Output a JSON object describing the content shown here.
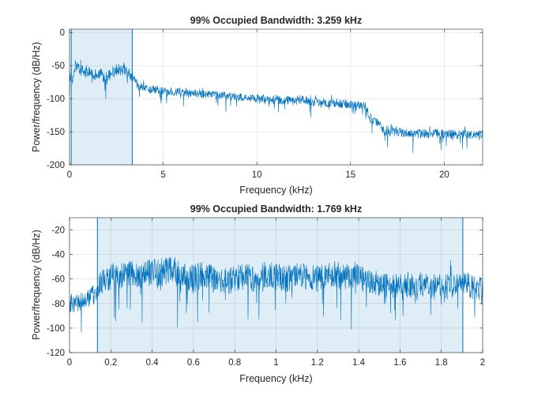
{
  "chart_data": [
    {
      "type": "line",
      "title": "99% Occupied Bandwidth: 3.259 kHz",
      "xlabel": "Frequency (kHz)",
      "ylabel": "Power/frequency (dB/Hz)",
      "xlim": [
        0,
        22.05
      ],
      "ylim": [
        -200,
        5
      ],
      "xticks": [
        0,
        5,
        10,
        15,
        20
      ],
      "yticks": [
        -200,
        -150,
        -100,
        -50,
        0
      ],
      "grid": true,
      "occupied_band": [
        0.09,
        3.349
      ],
      "series": [
        {
          "color": "#0072BD",
          "x": [
            0,
            0.1,
            0.2,
            0.3,
            0.5,
            0.8,
            1,
            1.3,
            1.6,
            2,
            2.3,
            2.6,
            3,
            3.3,
            3.5,
            3.8,
            4,
            5,
            6,
            7,
            8,
            9,
            10,
            11,
            12,
            12.5,
            13,
            14,
            15,
            15.8,
            16,
            16.3,
            16.6,
            16.8,
            17,
            17.5,
            18,
            19,
            20,
            21,
            22,
            22.05
          ],
          "y": [
            -70,
            -60,
            -75,
            -50,
            -55,
            -60,
            -58,
            -65,
            -62,
            -68,
            -60,
            -55,
            -58,
            -65,
            -75,
            -82,
            -85,
            -88,
            -90,
            -93,
            -95,
            -97,
            -100,
            -102,
            -103,
            -101,
            -104,
            -106,
            -108,
            -112,
            -125,
            -135,
            -140,
            -150,
            -148,
            -150,
            -152,
            -153,
            -153,
            -154,
            -154,
            -154
          ],
          "band": [
            18,
            18,
            18,
            20,
            18,
            18,
            18,
            18,
            18,
            18,
            18,
            18,
            18,
            18,
            16,
            14,
            12,
            12,
            12,
            12,
            12,
            12,
            14,
            14,
            14,
            14,
            14,
            14,
            14,
            14,
            14,
            14,
            14,
            18,
            18,
            15,
            15,
            15,
            15,
            15,
            15,
            15
          ]
        }
      ]
    },
    {
      "type": "line",
      "title": "99% Occupied Bandwidth: 1.769 kHz",
      "xlabel": "Frequency (kHz)",
      "ylabel": "Power/frequency (dB/Hz)",
      "xlim": [
        0,
        2
      ],
      "ylim": [
        -120,
        -10
      ],
      "xticks": [
        0,
        0.2,
        0.4,
        0.6,
        0.8,
        1,
        1.2,
        1.4,
        1.6,
        1.8,
        2
      ],
      "yticks": [
        -120,
        -100,
        -80,
        -60,
        -40,
        -20
      ],
      "grid": true,
      "occupied_band": [
        0.135,
        1.904
      ],
      "series": [
        {
          "color": "#0072BD",
          "x": [
            0,
            0.05,
            0.1,
            0.13,
            0.15,
            0.2,
            0.25,
            0.3,
            0.35,
            0.4,
            0.45,
            0.5,
            0.55,
            0.6,
            0.65,
            0.7,
            0.75,
            0.8,
            0.85,
            0.9,
            0.95,
            1,
            1.05,
            1.1,
            1.15,
            1.2,
            1.25,
            1.3,
            1.35,
            1.4,
            1.45,
            1.5,
            1.55,
            1.6,
            1.65,
            1.7,
            1.75,
            1.8,
            1.85,
            1.9,
            1.95,
            2
          ],
          "y": [
            -80,
            -78,
            -75,
            -72,
            -62,
            -58,
            -57,
            -55,
            -58,
            -54,
            -55,
            -52,
            -58,
            -60,
            -56,
            -60,
            -62,
            -60,
            -58,
            -60,
            -56,
            -58,
            -60,
            -57,
            -58,
            -60,
            -58,
            -57,
            -58,
            -56,
            -62,
            -64,
            -66,
            -65,
            -66,
            -64,
            -66,
            -65,
            -66,
            -62,
            -66,
            -68
          ],
          "band": [
            18,
            16,
            16,
            18,
            22,
            22,
            22,
            22,
            22,
            22,
            24,
            24,
            22,
            24,
            22,
            22,
            22,
            22,
            22,
            22,
            22,
            22,
            22,
            22,
            22,
            22,
            22,
            22,
            22,
            22,
            22,
            20,
            20,
            20,
            20,
            20,
            20,
            20,
            20,
            20,
            20,
            20
          ]
        }
      ]
    }
  ]
}
